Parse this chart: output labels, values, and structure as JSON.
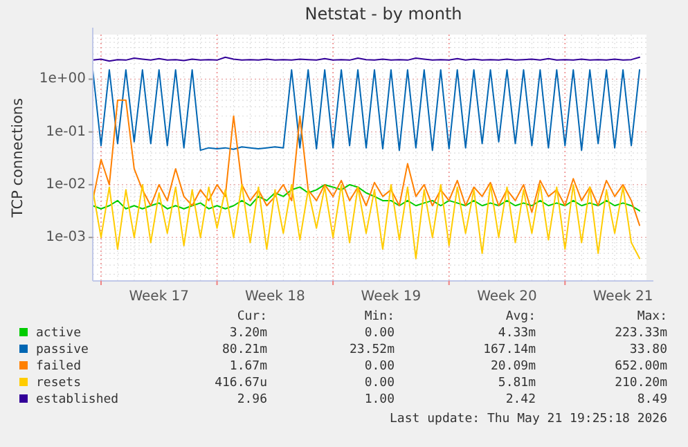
{
  "chart_data": {
    "type": "line",
    "title": "Netstat - by month",
    "ylabel": "TCP connections",
    "log": true,
    "grid": true,
    "legend": "bottom",
    "ylim": [
      0.00015,
      7
    ],
    "yticks": [
      {
        "value": 1,
        "label": "1e+00"
      },
      {
        "value": 0.1,
        "label": "1e-01"
      },
      {
        "value": 0.01,
        "label": "1e-02"
      },
      {
        "value": 0.001,
        "label": "1e-03"
      }
    ],
    "xlim": [
      "2026-04-19T12:00",
      "2026-05-22T22:00"
    ],
    "xticks": [
      {
        "value": "2026-04-20",
        "label": null
      },
      {
        "value": "2026-04-23T12:00",
        "label": "Week 17"
      },
      {
        "value": "2026-04-27",
        "label": null
      },
      {
        "value": "2026-04-30T12:00",
        "label": "Week 18"
      },
      {
        "value": "2026-05-04",
        "label": null
      },
      {
        "value": "2026-05-07T12:00",
        "label": "Week 19"
      },
      {
        "value": "2026-05-11",
        "label": null
      },
      {
        "value": "2026-05-14T12:00",
        "label": "Week 20"
      },
      {
        "value": "2026-05-18",
        "label": null
      },
      {
        "value": "2026-05-21T12:00",
        "label": "Week 21"
      }
    ],
    "x": [
      "2026-04-19T12:00",
      "2026-04-20T00:00",
      "2026-04-20T12:00",
      "2026-04-21T00:00",
      "2026-04-21T12:00",
      "2026-04-22T00:00",
      "2026-04-22T12:00",
      "2026-04-23T00:00",
      "2026-04-23T12:00",
      "2026-04-24T00:00",
      "2026-04-24T12:00",
      "2026-04-25T00:00",
      "2026-04-25T12:00",
      "2026-04-26T00:00",
      "2026-04-26T12:00",
      "2026-04-27T00:00",
      "2026-04-27T12:00",
      "2026-04-28T00:00",
      "2026-04-28T12:00",
      "2026-04-29T00:00",
      "2026-04-29T12:00",
      "2026-04-30T00:00",
      "2026-04-30T12:00",
      "2026-05-01T00:00",
      "2026-05-01T12:00",
      "2026-05-02T00:00",
      "2026-05-02T12:00",
      "2026-05-03T00:00",
      "2026-05-03T12:00",
      "2026-05-04T00:00",
      "2026-05-04T12:00",
      "2026-05-05T00:00",
      "2026-05-05T12:00",
      "2026-05-06T00:00",
      "2026-05-06T12:00",
      "2026-05-07T00:00",
      "2026-05-07T12:00",
      "2026-05-08T00:00",
      "2026-05-08T12:00",
      "2026-05-09T00:00",
      "2026-05-09T12:00",
      "2026-05-10T00:00",
      "2026-05-10T12:00",
      "2026-05-11T00:00",
      "2026-05-11T12:00",
      "2026-05-12T00:00",
      "2026-05-12T12:00",
      "2026-05-13T00:00",
      "2026-05-13T12:00",
      "2026-05-14T00:00",
      "2026-05-14T12:00",
      "2026-05-15T00:00",
      "2026-05-15T12:00",
      "2026-05-16T00:00",
      "2026-05-16T12:00",
      "2026-05-17T00:00",
      "2026-05-17T12:00",
      "2026-05-18T00:00",
      "2026-05-18T12:00",
      "2026-05-19T00:00",
      "2026-05-19T12:00",
      "2026-05-20T00:00",
      "2026-05-20T12:00",
      "2026-05-21T00:00",
      "2026-05-21T12:00",
      "2026-05-22T00:00",
      "2026-05-22T12:00"
    ],
    "series": [
      {
        "name": "active",
        "color": "#00cc00",
        "values": [
          0.004,
          0.0035,
          0.004,
          0.005,
          0.0035,
          0.004,
          0.0035,
          0.004,
          0.0045,
          0.0035,
          0.004,
          0.0035,
          0.004,
          0.0045,
          0.0035,
          0.004,
          0.0035,
          0.004,
          0.005,
          0.004,
          0.006,
          0.005,
          0.007,
          0.006,
          0.008,
          0.009,
          0.007,
          0.008,
          0.01,
          0.009,
          0.008,
          0.01,
          0.009,
          0.007,
          0.006,
          0.005,
          0.005,
          0.004,
          0.005,
          0.004,
          0.0045,
          0.005,
          0.004,
          0.005,
          0.0045,
          0.004,
          0.005,
          0.004,
          0.0045,
          0.004,
          0.005,
          0.004,
          0.0045,
          0.004,
          0.005,
          0.004,
          0.0045,
          0.004,
          0.005,
          0.004,
          0.0045,
          0.004,
          0.005,
          0.004,
          0.0045,
          0.004,
          0.0032
        ]
      },
      {
        "name": "passive",
        "color": "#0066b3",
        "values": [
          1.5,
          0.055,
          1.5,
          0.06,
          1.5,
          0.065,
          1.5,
          0.06,
          1.5,
          0.055,
          1.5,
          0.05,
          1.5,
          0.045,
          0.05,
          0.048,
          0.05,
          0.047,
          0.052,
          0.05,
          0.048,
          0.05,
          0.052,
          0.05,
          1.5,
          0.05,
          1.5,
          0.048,
          1.5,
          0.05,
          1.5,
          0.055,
          1.5,
          0.05,
          1.5,
          0.048,
          1.5,
          0.045,
          1.5,
          0.05,
          1.5,
          0.045,
          1.5,
          0.048,
          1.5,
          0.05,
          1.5,
          0.06,
          1.5,
          0.065,
          1.5,
          0.06,
          1.5,
          0.055,
          1.5,
          0.05,
          1.5,
          0.055,
          1.5,
          0.045,
          1.5,
          0.06,
          1.5,
          0.05,
          1.5,
          0.055,
          1.5
        ]
      },
      {
        "name": "failed",
        "color": "#ff8000",
        "values": [
          0.005,
          0.03,
          0.01,
          0.4,
          0.4,
          0.02,
          0.008,
          0.004,
          0.01,
          0.005,
          0.02,
          0.006,
          0.004,
          0.008,
          0.005,
          0.01,
          0.006,
          0.2,
          0.01,
          0.005,
          0.008,
          0.004,
          0.006,
          0.01,
          0.005,
          0.2,
          0.008,
          0.005,
          0.01,
          0.006,
          0.012,
          0.005,
          0.009,
          0.004,
          0.011,
          0.006,
          0.008,
          0.004,
          0.025,
          0.006,
          0.01,
          0.004,
          0.008,
          0.005,
          0.012,
          0.004,
          0.009,
          0.006,
          0.011,
          0.004,
          0.008,
          0.005,
          0.01,
          0.003,
          0.012,
          0.006,
          0.008,
          0.004,
          0.013,
          0.005,
          0.009,
          0.004,
          0.012,
          0.006,
          0.01,
          0.005,
          0.0017
        ]
      },
      {
        "name": "resets",
        "color": "#ffcc00",
        "values": [
          0.008,
          0.001,
          0.009,
          0.0006,
          0.008,
          0.001,
          0.01,
          0.0008,
          0.007,
          0.0012,
          0.009,
          0.0007,
          0.008,
          0.001,
          0.009,
          0.0015,
          0.008,
          0.001,
          0.01,
          0.0008,
          0.009,
          0.0006,
          0.008,
          0.0012,
          0.01,
          0.0009,
          0.008,
          0.0015,
          0.009,
          0.001,
          0.01,
          0.0008,
          0.009,
          0.0012,
          0.008,
          0.0006,
          0.01,
          0.0009,
          0.009,
          0.0004,
          0.008,
          0.001,
          0.01,
          0.0007,
          0.009,
          0.0012,
          0.008,
          0.0005,
          0.01,
          0.001,
          0.009,
          0.0008,
          0.008,
          0.0012,
          0.01,
          0.0009,
          0.009,
          0.0006,
          0.01,
          0.0008,
          0.009,
          0.0005,
          0.008,
          0.0012,
          0.009,
          0.0008,
          0.0004
        ]
      },
      {
        "name": "established",
        "color": "#330099",
        "values": [
          2.3,
          2.4,
          2.2,
          2.35,
          2.3,
          2.5,
          2.4,
          2.3,
          2.45,
          2.3,
          2.35,
          2.25,
          2.4,
          2.3,
          2.35,
          2.3,
          2.6,
          2.4,
          2.3,
          2.35,
          2.3,
          2.4,
          2.3,
          2.35,
          2.3,
          2.4,
          2.35,
          2.3,
          2.45,
          2.3,
          2.35,
          2.3,
          2.5,
          2.35,
          2.3,
          2.4,
          2.3,
          2.35,
          2.3,
          2.5,
          2.4,
          2.3,
          2.35,
          2.3,
          2.45,
          2.3,
          2.4,
          2.3,
          2.35,
          2.3,
          2.4,
          2.3,
          2.35,
          2.4,
          2.3,
          2.45,
          2.3,
          2.35,
          2.3,
          2.4,
          2.3,
          2.35,
          2.3,
          2.4,
          2.3,
          2.35,
          2.6
        ]
      }
    ],
    "annotations": [
      "Cur:",
      "Min:",
      "Avg:",
      "Max:",
      "3.20m",
      "0.00",
      "4.33m",
      "223.33m",
      "80.21m",
      "23.52m",
      "167.14m",
      "33.80",
      "1.67m",
      "0.00",
      "20.09m",
      "652.00m",
      "416.67u",
      "0.00",
      "5.81m",
      "210.20m",
      "2.96",
      "1.00",
      "2.42",
      "8.49",
      "Last update: Thu May 21 19:25:18 2026"
    ]
  }
}
